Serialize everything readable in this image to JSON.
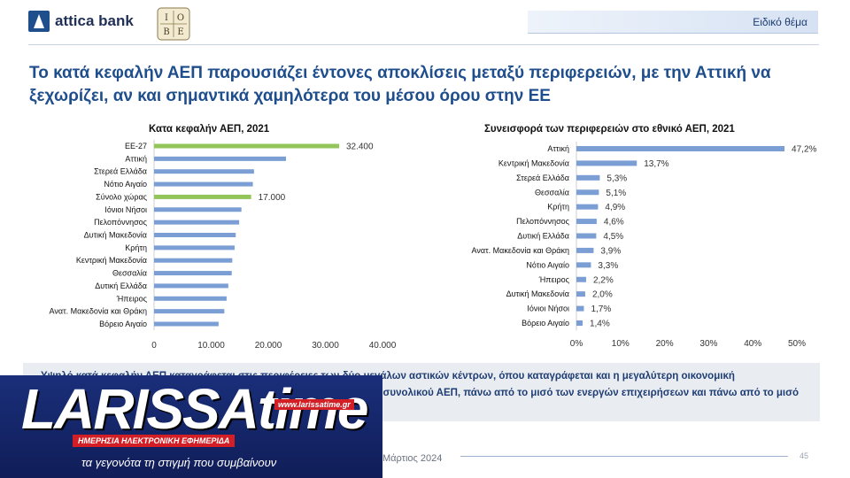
{
  "header": {
    "bank_name": "attica bank",
    "logo_letters": [
      "Ι",
      "Ο",
      "Β",
      "Ε"
    ],
    "badge": "Ειδικό θέμα"
  },
  "title": "Το κατά κεφαλήν ΑΕΠ παρουσιάζει έντονες αποκλίσεις μεταξύ περιφερειών, με την Αττική να ξεχωρίζει, αν και σημαντικά χαμηλότερα του μέσου όρου στην ΕΕ",
  "chart_data": [
    {
      "type": "bar",
      "orientation": "horizontal",
      "title": "Κατα κεφαλήν ΑΕΠ, 2021",
      "categories": [
        "ΕΕ-27",
        "Αττική",
        "Στερεά Ελλάδα",
        "Νότιο Αιγαίο",
        "Σύνολο χώρας",
        "Ιόνιοι Νήσοι",
        "Πελοπόννησος",
        "Δυτική Μακεδονία",
        "Κρήτη",
        "Κεντρική Μακεδονία",
        "Θεσσαλία",
        "Δυτική Ελλάδα",
        "Ήπειρος",
        "Ανατ. Μακεδονία και Θράκη",
        "Βόρειο Αιγαίο"
      ],
      "values": [
        32400,
        23100,
        17500,
        17300,
        17000,
        15300,
        14900,
        14300,
        14100,
        13700,
        13600,
        13000,
        12700,
        12300,
        11300
      ],
      "highlight": [
        true,
        false,
        false,
        false,
        true,
        false,
        false,
        false,
        false,
        false,
        false,
        false,
        false,
        false,
        false
      ],
      "data_labels": {
        "0": "32.400",
        "4": "17.000"
      },
      "xlim": [
        0,
        40000
      ],
      "xticks": [
        0,
        10000,
        20000,
        30000,
        40000
      ],
      "xtick_labels": [
        "0",
        "10.000",
        "20.000",
        "30.000",
        "40.000"
      ],
      "colors": {
        "base": "#7b9fd4",
        "highlight": "#92c55a"
      }
    },
    {
      "type": "bar",
      "orientation": "horizontal",
      "title": "Συνεισφορά των περιφερειών στο εθνικό ΑΕΠ, 2021",
      "categories": [
        "Αττική",
        "Κεντρική Μακεδονία",
        "Στερεά Ελλάδα",
        "Θεσσαλία",
        "Κρήτη",
        "Πελοπόννησος",
        "Δυτική Ελλάδα",
        "Ανατ. Μακεδονία και Θράκη",
        "Νότιο Αιγαίο",
        "Ήπειρος",
        "Δυτική Μακεδονία",
        "Ιόνιοι Νήσοι",
        "Βόρειο Αιγαίο"
      ],
      "values": [
        47.2,
        13.7,
        5.3,
        5.1,
        4.9,
        4.6,
        4.5,
        3.9,
        3.3,
        2.2,
        2.0,
        1.7,
        1.4
      ],
      "value_labels": [
        "47,2%",
        "13,7%",
        "5,3%",
        "5,1%",
        "4,9%",
        "4,6%",
        "4,5%",
        "3,9%",
        "3,3%",
        "2,2%",
        "2,0%",
        "1,7%",
        "1,4%"
      ],
      "xlim": [
        0,
        50
      ],
      "xticks": [
        0,
        10,
        20,
        30,
        40,
        50
      ],
      "xtick_labels": [
        "0%",
        "10%",
        "20%",
        "30%",
        "40%",
        "50%"
      ],
      "colors": {
        "base": "#7b9fd4"
      }
    }
  ],
  "summary": "Υψηλό κατά κεφαλήν ΑΕΠ καταγράφεται στις περιφέρειες των δύο μεγάλων αστικών κέντρων, όπου καταγράφεται και η μεγαλύτερη οικονομική δραστηριότητα. Η περιφέρεια Αττικής συνεισφέρει σχεδόν το μισό του συνολικού ΑΕΠ, πάνω από το μισό των ενεργών επιχειρήσεων και πάνω από το μισό των συνολικών εξαγωγών.",
  "footer": {
    "date": "Μάρτιος 2024",
    "page": "45"
  },
  "overlay": {
    "brand": "LARISSAtime",
    "url": "www.larissatime.gr",
    "tagline": "ΗΜΕΡΗΣΙΑ ΗΛΕΚΤΡΟΝΙΚΗ ΕΦΗΜΕΡΙΔΑ",
    "slogan": "τα γεγονότα τη στιγμή που συμβαίνουν"
  }
}
